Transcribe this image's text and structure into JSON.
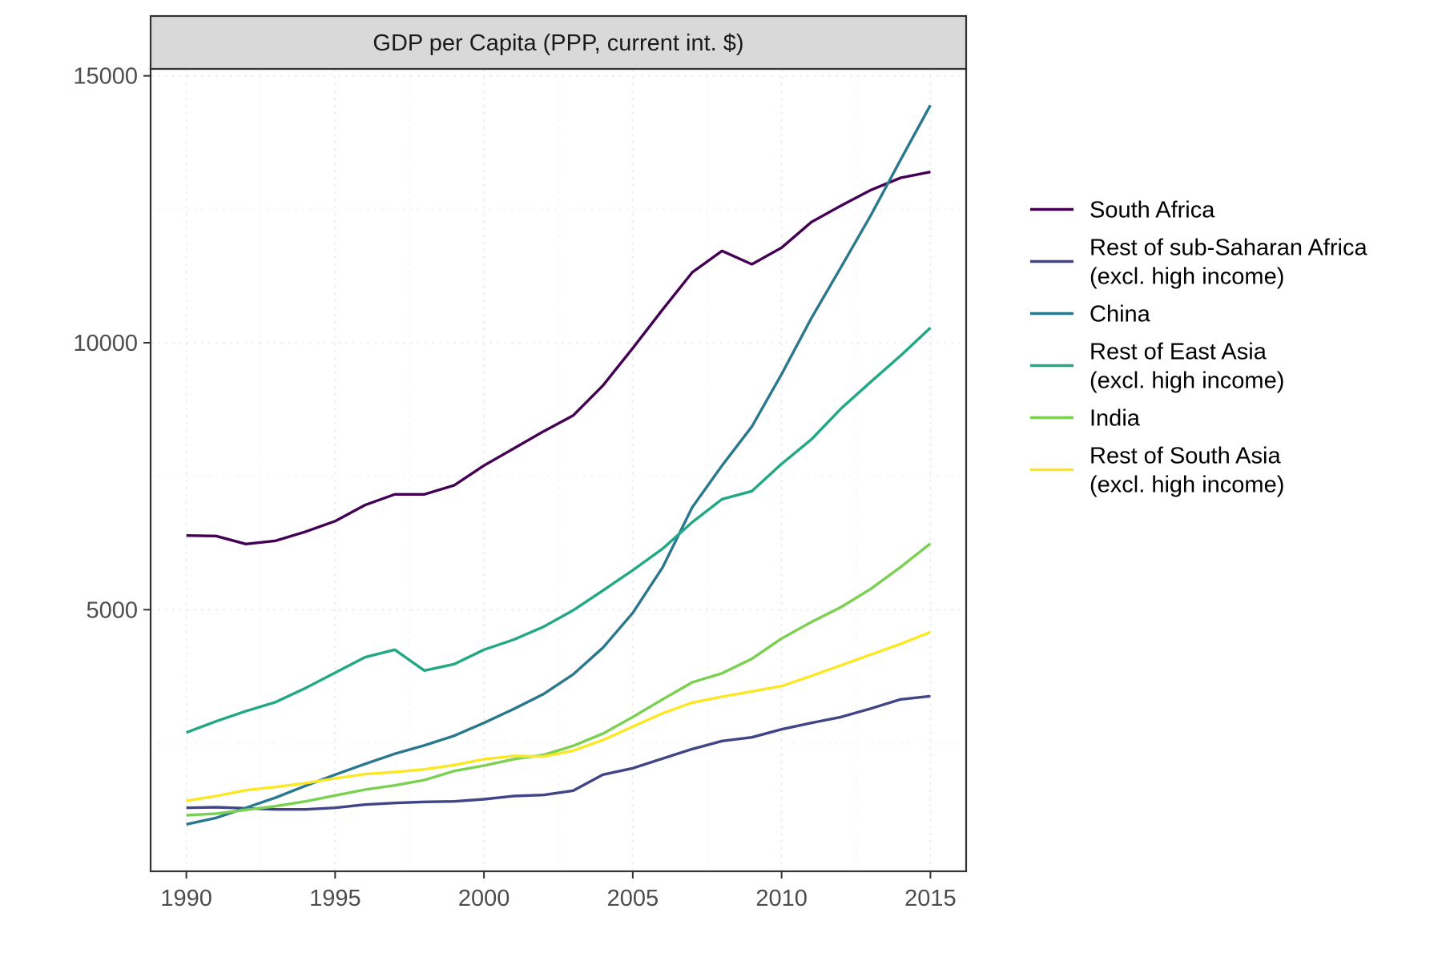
{
  "chart_data": {
    "type": "line",
    "title": "GDP per Capita (PPP, current int. $)",
    "xlabel": "",
    "ylabel": "",
    "xlim": [
      1988.8,
      2016.2
    ],
    "ylim": [
      100,
      15130
    ],
    "x_ticks": [
      1990,
      1995,
      2000,
      2005,
      2010,
      2015
    ],
    "y_ticks": [
      5000,
      10000,
      15000
    ],
    "grid": true,
    "legend_position": "right",
    "x": [
      1990,
      1991,
      1992,
      1993,
      1994,
      1995,
      1996,
      1997,
      1998,
      1999,
      2000,
      2001,
      2002,
      2003,
      2004,
      2005,
      2006,
      2007,
      2008,
      2009,
      2010,
      2011,
      2012,
      2013,
      2014,
      2015
    ],
    "series": [
      {
        "name": "South Africa",
        "color": "#440154",
        "values": [
          6390,
          6380,
          6230,
          6290,
          6460,
          6660,
          6960,
          7160,
          7160,
          7330,
          7700,
          8020,
          8340,
          8640,
          9200,
          9900,
          10620,
          11320,
          11720,
          11470,
          11780,
          12260,
          12570,
          12860,
          13090,
          13200
        ]
      },
      {
        "name": "Rest of sub-Saharan Africa\n(excl. high income)",
        "color": "#414487",
        "values": [
          1290,
          1300,
          1280,
          1260,
          1260,
          1290,
          1350,
          1380,
          1400,
          1410,
          1450,
          1510,
          1530,
          1610,
          1910,
          2030,
          2210,
          2390,
          2540,
          2610,
          2760,
          2880,
          2990,
          3150,
          3320,
          3380
        ]
      },
      {
        "name": "China",
        "color": "#2A788E",
        "values": [
          980,
          1100,
          1290,
          1480,
          1700,
          1910,
          2110,
          2300,
          2460,
          2640,
          2880,
          3140,
          3420,
          3790,
          4290,
          4940,
          5790,
          6920,
          7700,
          8430,
          9410,
          10460,
          11420,
          12390,
          13430,
          14450
        ]
      },
      {
        "name": "Rest of East Asia\n(excl. high income)",
        "color": "#22A884",
        "values": [
          2700,
          2910,
          3100,
          3270,
          3530,
          3820,
          4110,
          4250,
          3860,
          3980,
          4250,
          4440,
          4680,
          4990,
          5360,
          5740,
          6140,
          6640,
          7070,
          7220,
          7730,
          8190,
          8770,
          9270,
          9760,
          10280
        ]
      },
      {
        "name": "India",
        "color": "#7AD151",
        "values": [
          1150,
          1180,
          1250,
          1320,
          1410,
          1520,
          1630,
          1710,
          1810,
          1980,
          2080,
          2200,
          2280,
          2450,
          2680,
          2990,
          3320,
          3640,
          3810,
          4080,
          4460,
          4770,
          5050,
          5390,
          5800,
          6240
        ]
      },
      {
        "name": "Rest of South Asia\n(excl. high income)",
        "color": "#FDE725",
        "values": [
          1420,
          1510,
          1620,
          1680,
          1750,
          1840,
          1920,
          1960,
          2010,
          2090,
          2200,
          2260,
          2250,
          2360,
          2560,
          2810,
          3060,
          3260,
          3370,
          3470,
          3570,
          3760,
          3960,
          4160,
          4360,
          4580
        ]
      }
    ]
  }
}
